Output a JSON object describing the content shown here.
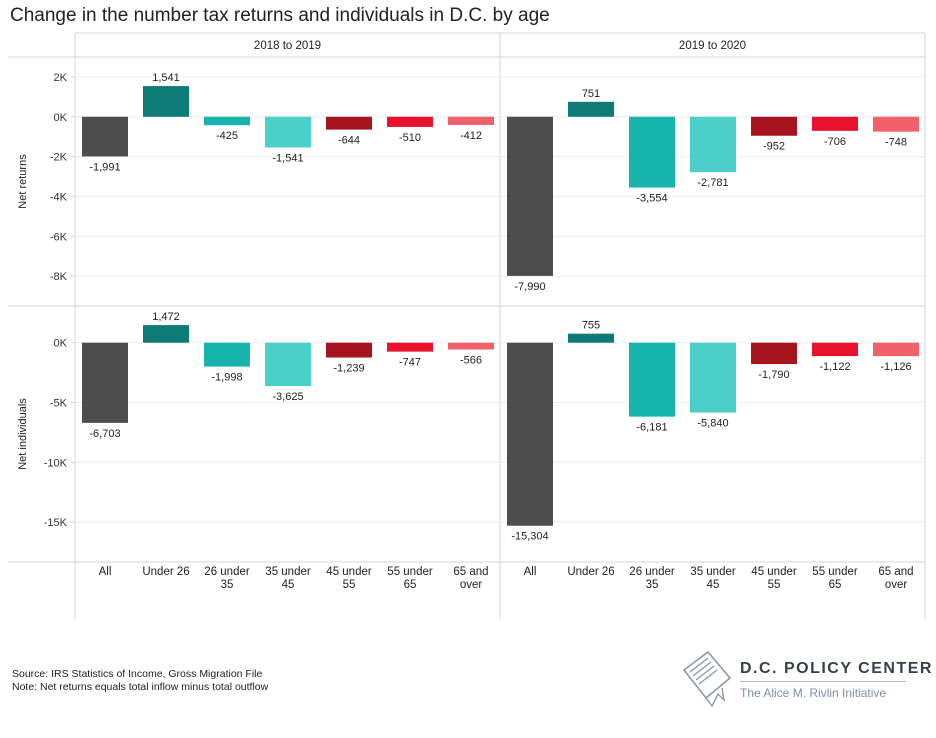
{
  "title": "Change in the number tax returns and individuals in D.C. by age",
  "footer": {
    "source": "Source: IRS Statistics of Income, Gross Migration File",
    "note": "Note: Net returns equals total inflow minus total outflow"
  },
  "logo": {
    "name": "D.C. POLICY CENTER",
    "subtitle": "The Alice M. Rivlin Initiative",
    "icon": "dc-map-document-icon"
  },
  "chart_data": {
    "type": "bar",
    "columns": [
      "2018 to 2019",
      "2019 to 2020"
    ],
    "categories": [
      "All",
      "Under 26",
      "26 under 35",
      "35 under 45",
      "45 under 55",
      "55 under 65",
      "65 and over"
    ],
    "category_labels": [
      [
        "All"
      ],
      [
        "Under 26"
      ],
      [
        "26 under",
        "35"
      ],
      [
        "35 under",
        "45"
      ],
      [
        "45 under",
        "55"
      ],
      [
        "55 under",
        "65"
      ],
      [
        "65 and",
        "over"
      ]
    ],
    "colors": [
      "#4d4d4d",
      "#0f7b77",
      "#16b4ac",
      "#4dcfc9",
      "#a5141f",
      "#e8122e",
      "#f0616b"
    ],
    "grid": true,
    "rows": [
      {
        "ylabel": "Net returns",
        "ylim": [
          -9000,
          2600
        ],
        "ticks": [
          2000,
          0,
          -2000,
          -4000,
          -6000,
          -8000
        ],
        "tick_labels": [
          "2K",
          "0K",
          "-2K",
          "-4K",
          "-6K",
          "-8K"
        ],
        "series": [
          {
            "values": [
              -1991,
              1541,
              -425,
              -1541,
              -644,
              -510,
              -412
            ],
            "labels": [
              "-1,991",
              "1,541",
              "-425",
              "-1,541",
              "-644",
              "-510",
              "-412"
            ]
          },
          {
            "values": [
              -7990,
              751,
              -3554,
              -2781,
              -952,
              -706,
              -748
            ],
            "labels": [
              "-7,990",
              "751",
              "-3,554",
              "-2,781",
              "-952",
              "-706",
              "-748"
            ]
          }
        ]
      },
      {
        "ylabel": "Net individuals",
        "ylim": [
          -17500,
          2400
        ],
        "ticks": [
          0,
          -5000,
          -10000,
          -15000
        ],
        "tick_labels": [
          "0K",
          "-5K",
          "-10K",
          "-15K"
        ],
        "series": [
          {
            "values": [
              -6703,
              1472,
              -1998,
              -3625,
              -1239,
              -747,
              -566
            ],
            "labels": [
              "-6,703",
              "1,472",
              "-1,998",
              "-3,625",
              "-1,239",
              "-747",
              "-566"
            ]
          },
          {
            "values": [
              -15304,
              755,
              -6181,
              -5840,
              -1790,
              -1122,
              -1126
            ],
            "labels": [
              "-15,304",
              "755",
              "-6,181",
              "-5,840",
              "-1,790",
              "-1,122",
              "-1,126"
            ]
          }
        ]
      }
    ]
  }
}
